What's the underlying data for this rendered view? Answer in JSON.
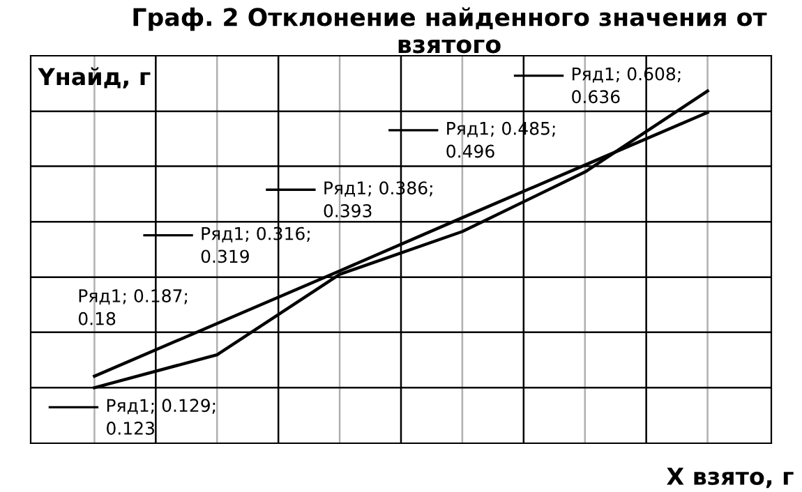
{
  "chart_data": {
    "type": "line",
    "title": "Граф. 2 Отклонение найденного значения от взятого",
    "xlabel": "X взято, г",
    "ylabel": "Yнайд, г",
    "categories": [
      null,
      null,
      null,
      null,
      null,
      null
    ],
    "ylim": [
      0.027,
      0.697
    ],
    "yticks": [
      {
        "value": 0.123,
        "label": null
      },
      {
        "value": 0.219,
        "label": null
      },
      {
        "value": 0.314,
        "label": null
      },
      {
        "value": 0.41,
        "label": null
      },
      {
        "value": 0.506,
        "label": null
      },
      {
        "value": 0.601,
        "label": null
      }
    ],
    "grid": true,
    "series": [
      {
        "color": "#000000",
        "values": [
          0.123,
          0.18,
          0.319,
          0.393,
          0.496,
          0.636
        ],
        "value_labels": [
          "Ряд1; 0.129;\n0.123",
          "Ряд1; 0.187;\n0.18",
          "Ряд1; 0.316;\n0.319",
          "Ряд1; 0.386;\n0.393",
          "Ряд1; 0.485;\n0.496",
          "Ряд1; 0.608;\n0.636"
        ]
      },
      {
        "color": "#000000",
        "values": [
          0.143,
          0.234,
          0.325,
          0.417,
          0.508,
          0.599
        ]
      }
    ]
  }
}
